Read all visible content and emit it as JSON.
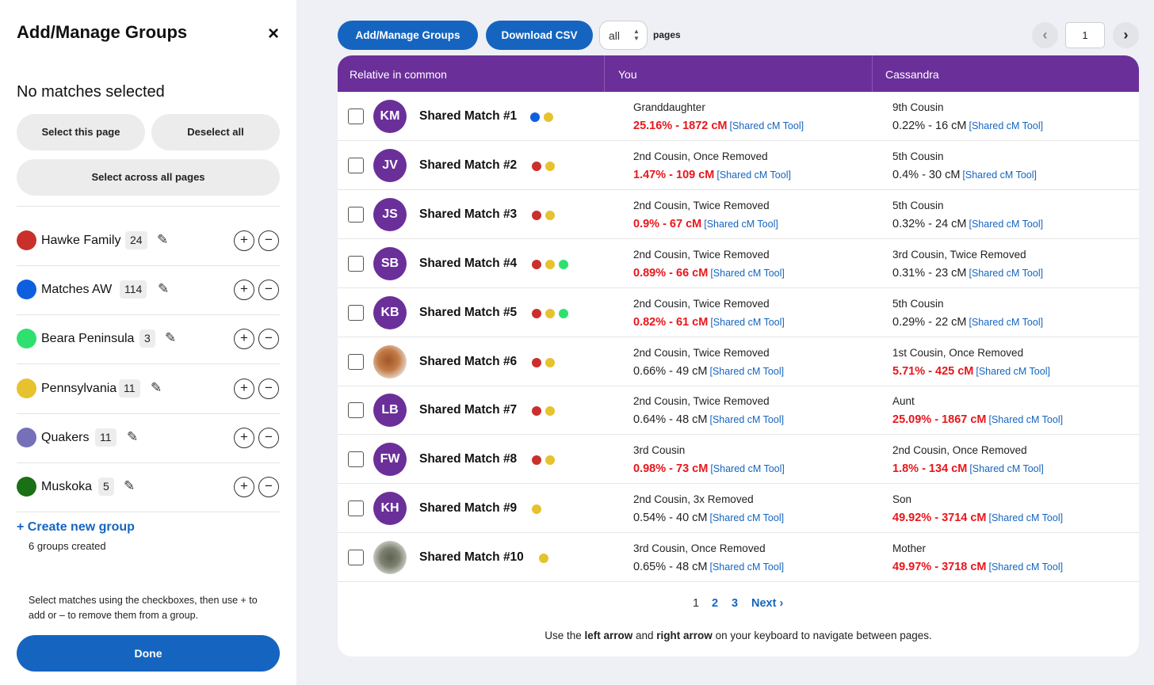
{
  "panel": {
    "title": "Add/Manage Groups",
    "close_label": "×",
    "selection_status": "No matches selected",
    "select_page": "Select this page",
    "deselect_all": "Deselect all",
    "select_all_pages": "Select across all pages",
    "groups": [
      {
        "name": "Hawke Family",
        "count": "24",
        "color": "#c9302c"
      },
      {
        "name": "Matches AW",
        "count": "114",
        "color": "#0d5fe0"
      },
      {
        "name": "Beara Peninsula",
        "count": "3",
        "color": "#2fe06e"
      },
      {
        "name": "Pennsylvania",
        "count": "11",
        "color": "#e6c22e"
      },
      {
        "name": "Quakers",
        "count": "11",
        "color": "#7670b8"
      },
      {
        "name": "Muskoka",
        "count": "5",
        "color": "#1a7015"
      }
    ],
    "create_group": "+ Create new group",
    "groups_created": "6 groups created",
    "help_text": "Select matches using the checkboxes, then use + to add or – to remove them from a group.",
    "done": "Done"
  },
  "toolbar": {
    "add_manage": "Add/Manage Groups",
    "download_csv": "Download CSV",
    "pages_value": "all",
    "pages_label": "pages",
    "current_page": "1"
  },
  "table": {
    "headers": [
      "Relative in common",
      "You",
      "Cassandra"
    ],
    "tool_label": "[Shared cM Tool]",
    "rows": [
      {
        "initials": "KM",
        "name": "Shared Match #1",
        "dots": [
          "blue",
          "yellow"
        ],
        "you_rel": "Granddaughter",
        "you_shared": "25.16% - 1872 cM",
        "you_hot": true,
        "cas_rel": "9th Cousin",
        "cas_shared": "0.22% - 16 cM",
        "cas_hot": false
      },
      {
        "initials": "JV",
        "name": "Shared Match #2",
        "dots": [
          "red",
          "yellow"
        ],
        "you_rel": "2nd Cousin, Once Removed",
        "you_shared": "1.47% - 109 cM",
        "you_hot": true,
        "cas_rel": "5th Cousin",
        "cas_shared": "0.4% - 30 cM",
        "cas_hot": false
      },
      {
        "initials": "JS",
        "name": "Shared Match #3",
        "dots": [
          "red",
          "yellow"
        ],
        "you_rel": "2nd Cousin, Twice Removed",
        "you_shared": "0.9% - 67 cM",
        "you_hot": true,
        "cas_rel": "5th Cousin",
        "cas_shared": "0.32% - 24 cM",
        "cas_hot": false
      },
      {
        "initials": "SB",
        "name": "Shared Match #4",
        "dots": [
          "red",
          "yellow",
          "green"
        ],
        "you_rel": "2nd Cousin, Twice Removed",
        "you_shared": "0.89% - 66 cM",
        "you_hot": true,
        "cas_rel": "3rd Cousin, Twice Removed",
        "cas_shared": "0.31% - 23 cM",
        "cas_hot": false
      },
      {
        "initials": "KB",
        "name": "Shared Match #5",
        "dots": [
          "red",
          "yellow",
          "green"
        ],
        "you_rel": "2nd Cousin, Twice Removed",
        "you_shared": "0.82% - 61 cM",
        "you_hot": true,
        "cas_rel": "5th Cousin",
        "cas_shared": "0.29% - 22 cM",
        "cas_hot": false
      },
      {
        "initials": "",
        "photo": "blur1",
        "name": "Shared Match #6",
        "dots": [
          "red",
          "yellow"
        ],
        "you_rel": "2nd Cousin, Twice Removed",
        "you_shared": "0.66% - 49 cM",
        "you_hot": false,
        "cas_rel": "1st Cousin, Once Removed",
        "cas_shared": "5.71% - 425 cM",
        "cas_hot": true
      },
      {
        "initials": "LB",
        "name": "Shared Match #7",
        "dots": [
          "red",
          "yellow"
        ],
        "you_rel": "2nd Cousin, Twice Removed",
        "you_shared": "0.64% - 48 cM",
        "you_hot": false,
        "cas_rel": "Aunt",
        "cas_shared": "25.09% - 1867 cM",
        "cas_hot": true
      },
      {
        "initials": "FW",
        "name": "Shared Match #8",
        "dots": [
          "red",
          "yellow"
        ],
        "you_rel": "3rd Cousin",
        "you_shared": "0.98% - 73 cM",
        "you_hot": true,
        "cas_rel": "2nd Cousin, Once Removed",
        "cas_shared": "1.8% - 134 cM",
        "cas_hot": true
      },
      {
        "initials": "KH",
        "name": "Shared Match #9",
        "dots": [
          "yellow"
        ],
        "you_rel": "2nd Cousin, 3x Removed",
        "you_shared": "0.54% - 40 cM",
        "you_hot": false,
        "cas_rel": "Son",
        "cas_shared": "49.92% - 3714 cM",
        "cas_hot": true
      },
      {
        "initials": "",
        "photo": "blur2",
        "name": "Shared Match #10",
        "dots": [
          "yellow"
        ],
        "you_rel": "3rd Cousin, Once Removed",
        "you_shared": "0.65% - 48 cM",
        "you_hot": false,
        "cas_rel": "Mother",
        "cas_shared": "49.97% - 3718 cM",
        "cas_hot": true
      }
    ],
    "dot_colors": {
      "red": "#c9302c",
      "blue": "#0d5fe0",
      "yellow": "#e6c22e",
      "green": "#2fe06e"
    }
  },
  "pagination": {
    "pages": [
      "1",
      "2",
      "3"
    ],
    "next": "Next",
    "hint_pre": "Use the ",
    "hint_left": "left arrow",
    "hint_mid": " and ",
    "hint_right": "right arrow",
    "hint_post": " on your keyboard to navigate between pages."
  }
}
